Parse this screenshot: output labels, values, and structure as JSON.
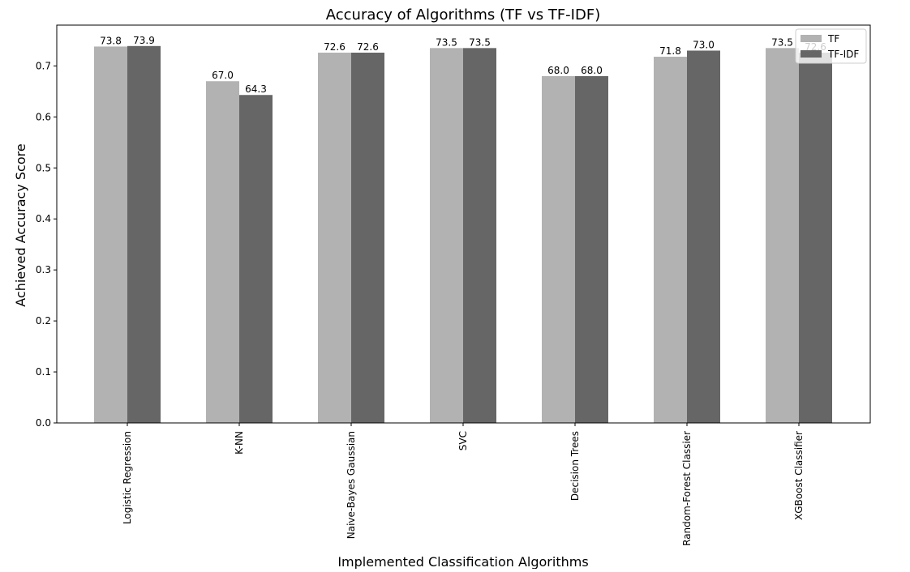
{
  "chart_data": {
    "type": "bar",
    "title": "Accuracy of Algorithms (TF vs TF-IDF)",
    "xlabel": "Implemented Classification Algorithms",
    "ylabel": "Achieved Accuracy Score",
    "categories": [
      "Logistic Regression",
      "K-NN",
      "Naive-Bayes Gaussian",
      "SVC",
      "Decision Trees",
      "Random-Forest Classier",
      "XGBoost Classifier"
    ],
    "series": [
      {
        "name": "TF",
        "values": [
          0.738,
          0.67,
          0.726,
          0.735,
          0.68,
          0.718,
          0.735
        ],
        "labels": [
          "73.8",
          "67.0",
          "72.6",
          "73.5",
          "68.0",
          "71.8",
          "73.5"
        ],
        "color": "#b2b2b2"
      },
      {
        "name": "TF-IDF",
        "values": [
          0.739,
          0.643,
          0.726,
          0.735,
          0.68,
          0.73,
          0.726
        ],
        "labels": [
          "73.9",
          "64.3",
          "72.6",
          "73.5",
          "68.0",
          "73.0",
          "72.6"
        ],
        "color": "#666666"
      }
    ],
    "ylim": [
      0,
      0.78
    ],
    "yticks": [
      "0.0",
      "0.1",
      "0.2",
      "0.3",
      "0.4",
      "0.5",
      "0.6",
      "0.7"
    ],
    "legend_position": "top-right",
    "grid": false
  }
}
